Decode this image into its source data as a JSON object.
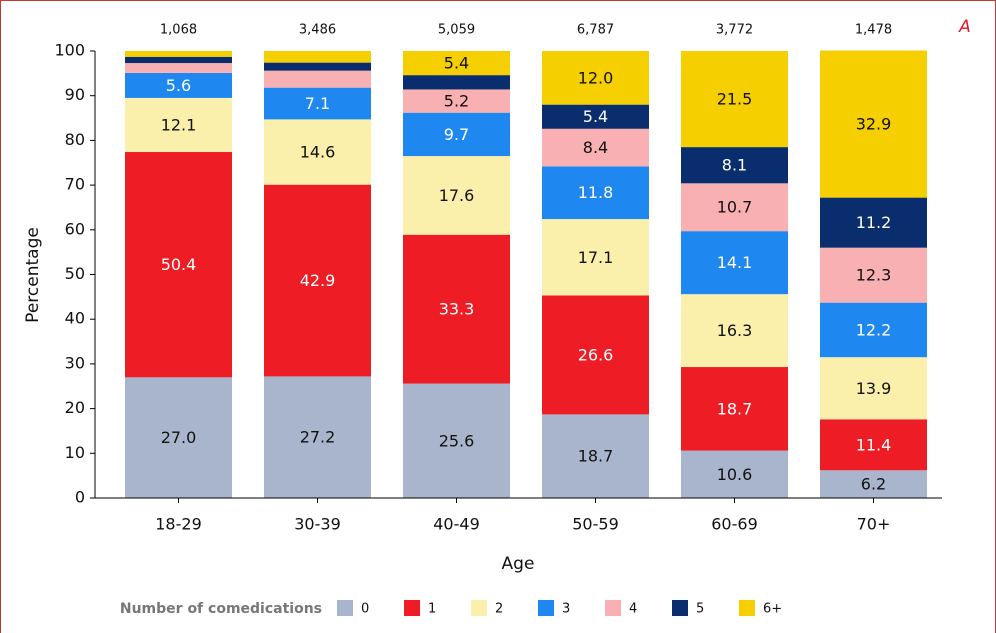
{
  "chart_data": {
    "type": "stacked-bar",
    "panel_label": "A",
    "x_label": "Age",
    "y_label": "Percentage",
    "legend_title": "Number of comedications",
    "categories": [
      "18-29",
      "30-39",
      "40-49",
      "50-59",
      "60-69",
      "70+"
    ],
    "n_labels": [
      "1,068",
      "3,486",
      "5,059",
      "6,787",
      "3,772",
      "1,478"
    ],
    "ylim": [
      0,
      100
    ],
    "yticks": [
      0,
      10,
      20,
      30,
      40,
      50,
      60,
      70,
      80,
      90,
      100
    ],
    "series": [
      {
        "name": "0",
        "color": "#a9b5cc",
        "values": [
          27.0,
          27.2,
          25.6,
          18.7,
          10.6,
          6.2
        ],
        "value_labels": [
          "27.0",
          "27.2",
          "25.6",
          "18.7",
          "10.6",
          "6.2"
        ]
      },
      {
        "name": "1",
        "color": "#ee1c25",
        "values": [
          50.4,
          42.9,
          33.3,
          26.6,
          18.7,
          11.4
        ],
        "value_labels": [
          "50.4",
          "42.9",
          "33.3",
          "26.6",
          "18.7",
          "11.4"
        ]
      },
      {
        "name": "2",
        "color": "#fbefac",
        "values": [
          12.1,
          14.6,
          17.6,
          17.1,
          16.3,
          13.9
        ],
        "value_labels": [
          "12.1",
          "14.6",
          "17.6",
          "17.1",
          "16.3",
          "13.9"
        ]
      },
      {
        "name": "3",
        "color": "#1e88f0",
        "values": [
          5.6,
          7.1,
          9.7,
          11.8,
          14.1,
          12.2
        ],
        "value_labels": [
          "5.6",
          "7.1",
          "9.7",
          "11.8",
          "14.1",
          "12.2"
        ]
      },
      {
        "name": "4",
        "color": "#f9b0b3",
        "values": [
          2.2,
          3.8,
          5.2,
          8.4,
          10.7,
          12.3
        ],
        "value_labels": [
          null,
          null,
          "5.2",
          "8.4",
          "10.7",
          "12.3"
        ]
      },
      {
        "name": "5",
        "color": "#0a2d6e",
        "values": [
          1.4,
          1.8,
          3.2,
          5.4,
          8.1,
          11.2
        ],
        "value_labels": [
          null,
          null,
          null,
          "5.4",
          "8.1",
          "11.2"
        ]
      },
      {
        "name": "6+",
        "color": "#f5cf00",
        "values": [
          1.3,
          2.6,
          5.4,
          12.0,
          21.5,
          32.9
        ],
        "value_labels": [
          null,
          null,
          "5.4",
          "12.0",
          "21.5",
          "32.9"
        ]
      }
    ]
  }
}
